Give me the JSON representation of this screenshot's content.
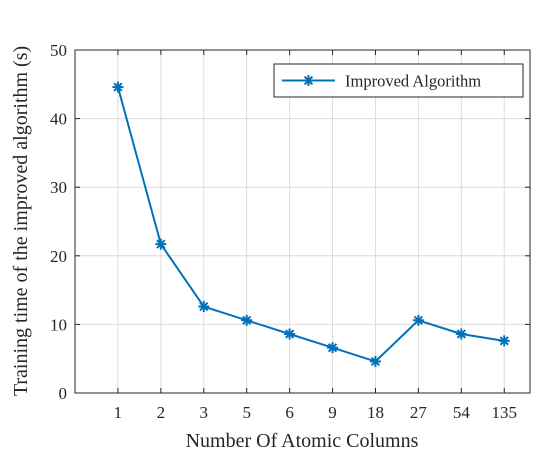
{
  "chart_data": {
    "type": "line",
    "categories": [
      "1",
      "2",
      "3",
      "5",
      "6",
      "9",
      "18",
      "27",
      "54",
      "135"
    ],
    "series": [
      {
        "name": "Improved Algorithm",
        "values": [
          44.6,
          21.7,
          12.6,
          10.6,
          8.6,
          6.6,
          4.6,
          10.6,
          8.6,
          7.6
        ],
        "color": "#0072BD",
        "marker": "asterisk"
      }
    ],
    "xlabel": "Number Of Atomic Columns",
    "ylabel": "Training time of the improved algorithm (s)",
    "ylim": [
      0,
      50
    ],
    "yticks": [
      0,
      10,
      20,
      30,
      40,
      50
    ],
    "grid": true,
    "legend_position": "top-right"
  }
}
